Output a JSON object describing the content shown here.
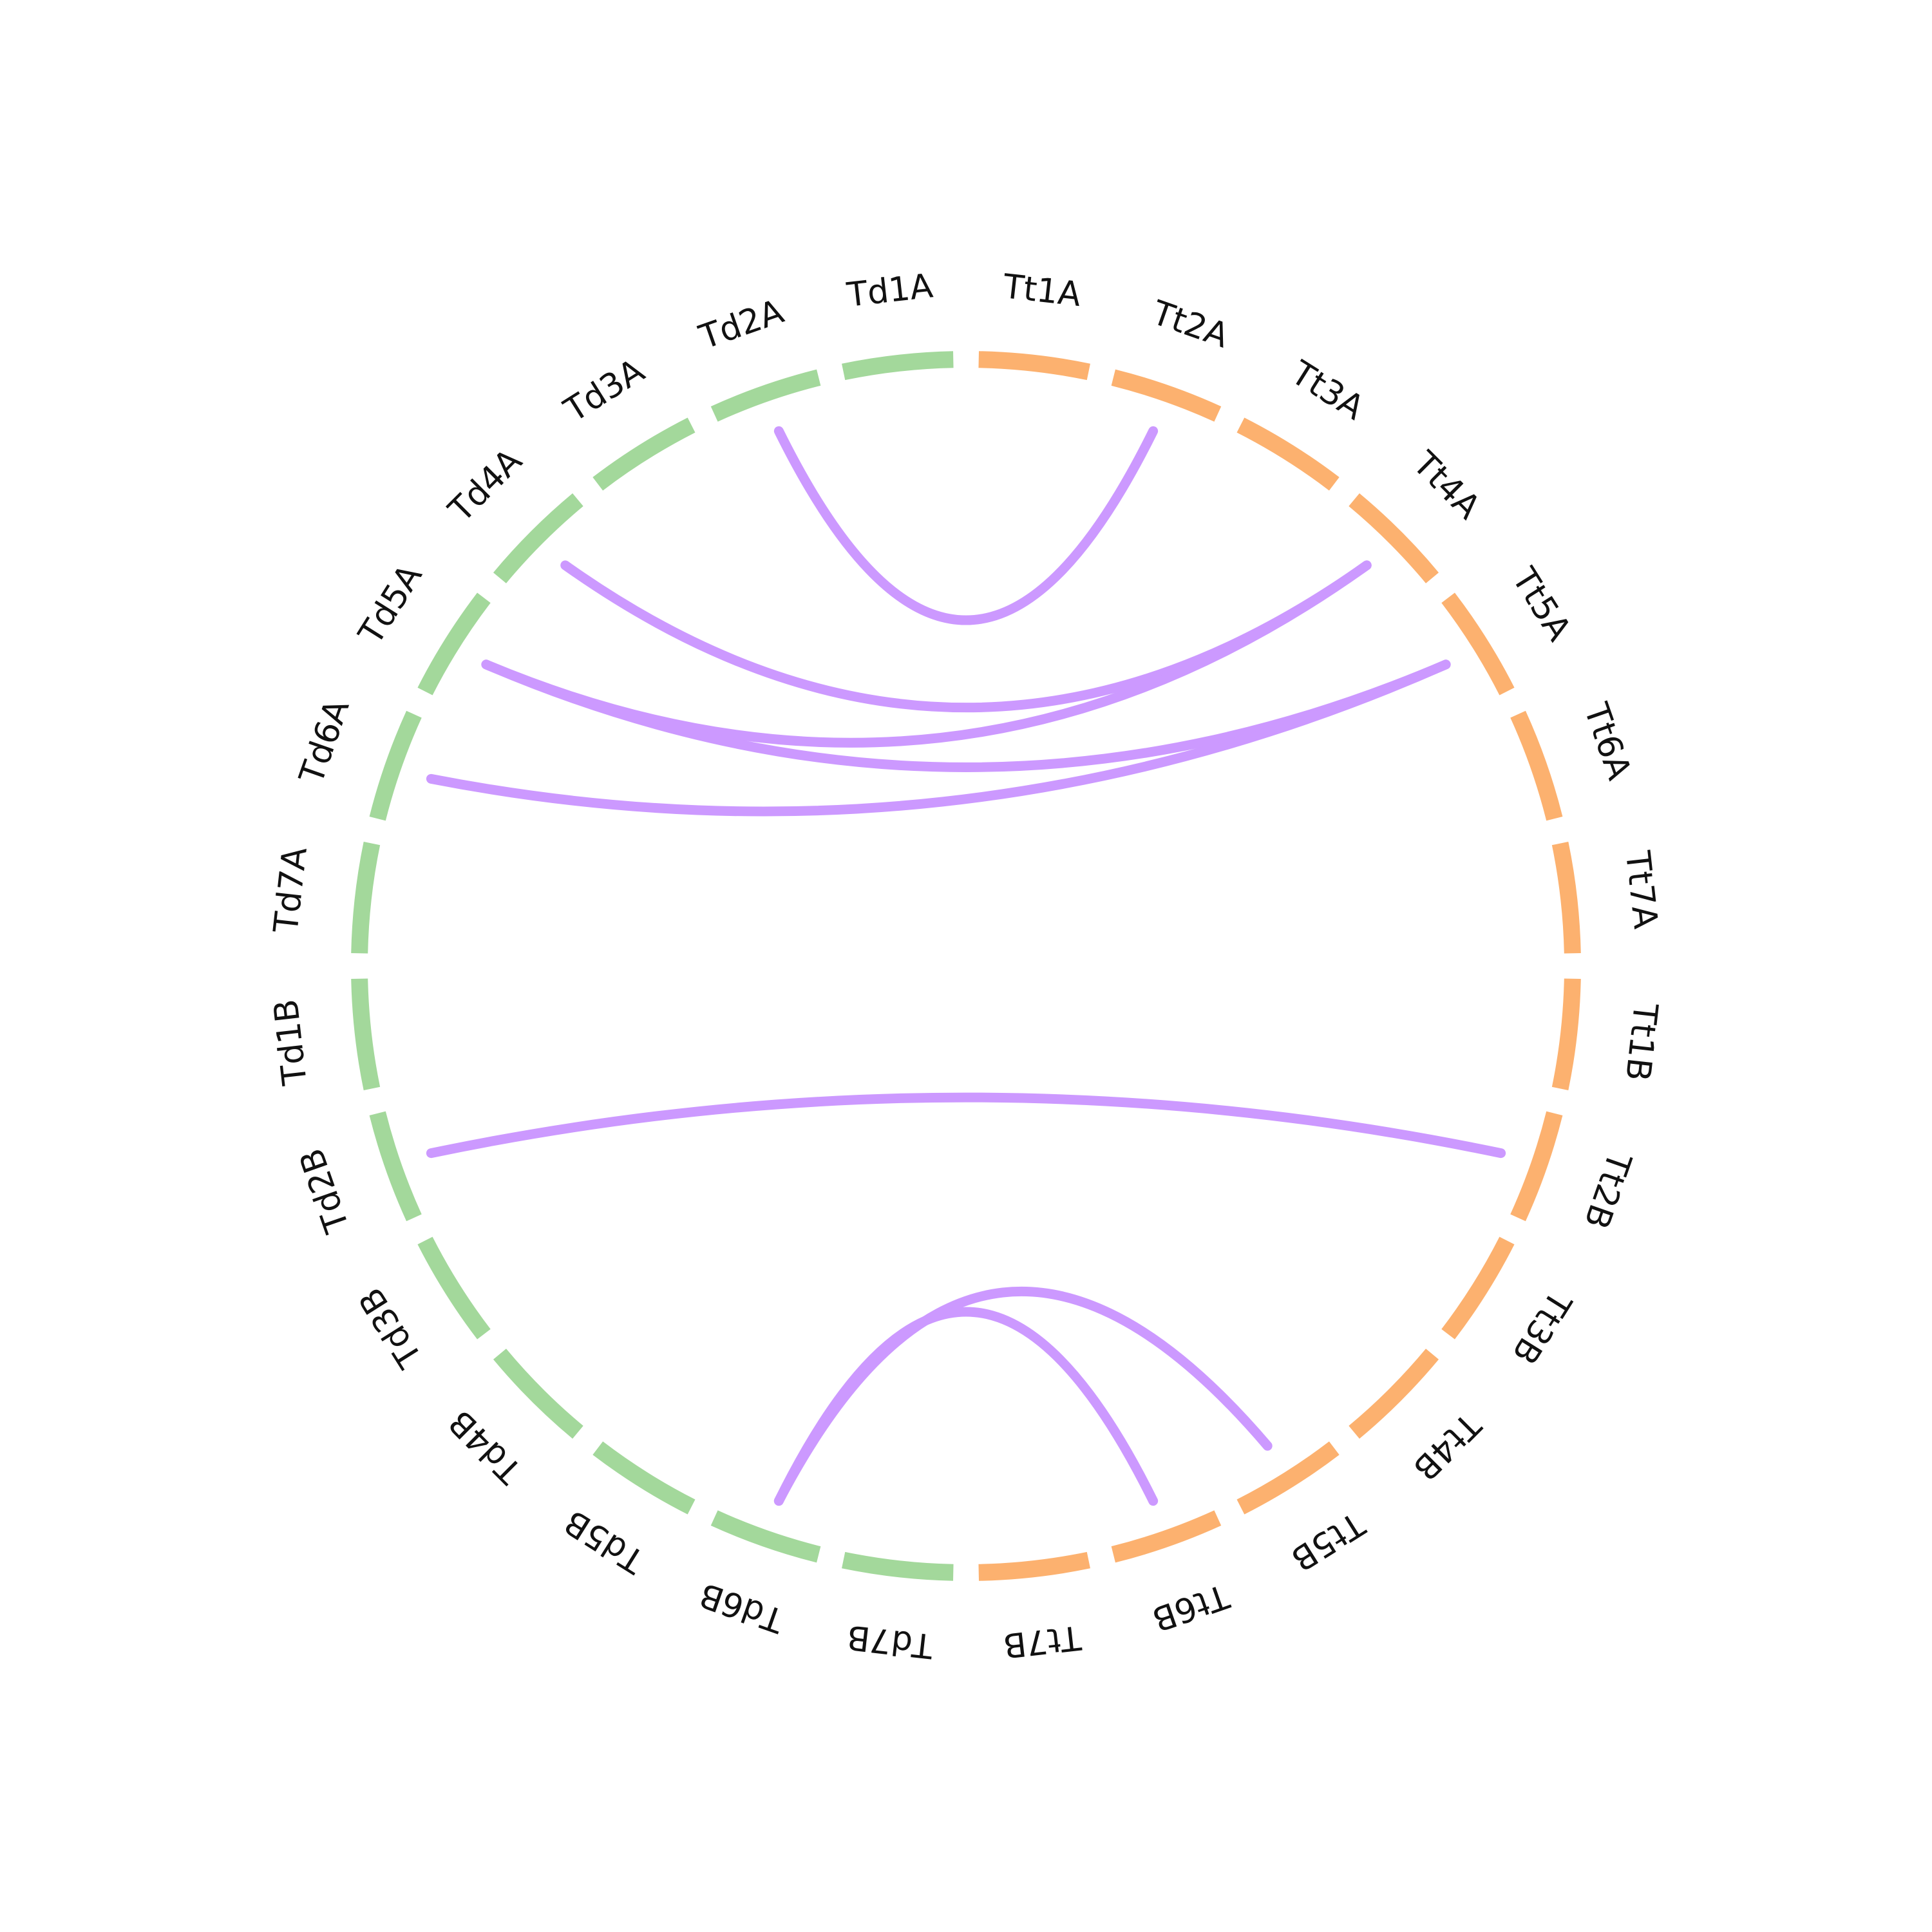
{
  "colors": {
    "Td": "#a3d89b",
    "Tt": "#fcb16f",
    "link": "#cc99ff",
    "label": "#111111",
    "background": "#ffffff"
  },
  "segments": [
    {
      "label": "Td1A",
      "group": "Td"
    },
    {
      "label": "Td2A",
      "group": "Td"
    },
    {
      "label": "Td3A",
      "group": "Td"
    },
    {
      "label": "Td4A",
      "group": "Td"
    },
    {
      "label": "Td5A",
      "group": "Td"
    },
    {
      "label": "Td6A",
      "group": "Td"
    },
    {
      "label": "Td7A",
      "group": "Td"
    },
    {
      "label": "Td1B",
      "group": "Td"
    },
    {
      "label": "Td2B",
      "group": "Td"
    },
    {
      "label": "Td3B",
      "group": "Td"
    },
    {
      "label": "Td4B",
      "group": "Td"
    },
    {
      "label": "Td5B",
      "group": "Td"
    },
    {
      "label": "Td6B",
      "group": "Td"
    },
    {
      "label": "Td7B",
      "group": "Td"
    },
    {
      "label": "Tt7B",
      "group": "Tt"
    },
    {
      "label": "Tt6B",
      "group": "Tt"
    },
    {
      "label": "Tt5B",
      "group": "Tt"
    },
    {
      "label": "Tt4B",
      "group": "Tt"
    },
    {
      "label": "Tt3B",
      "group": "Tt"
    },
    {
      "label": "Tt2B",
      "group": "Tt"
    },
    {
      "label": "Tt1B",
      "group": "Tt"
    },
    {
      "label": "Tt7A",
      "group": "Tt"
    },
    {
      "label": "Tt6A",
      "group": "Tt"
    },
    {
      "label": "Tt5A",
      "group": "Tt"
    },
    {
      "label": "Tt4A",
      "group": "Tt"
    },
    {
      "label": "Tt3A",
      "group": "Tt"
    },
    {
      "label": "Tt2A",
      "group": "Tt"
    },
    {
      "label": "Tt1A",
      "group": "Tt"
    }
  ],
  "links": [
    {
      "from": "Td2A",
      "to": "Tt2A"
    },
    {
      "from": "Td4A",
      "to": "Tt4A"
    },
    {
      "from": "Td5A",
      "to": "Tt4A"
    },
    {
      "from": "Td5A",
      "to": "Tt5A"
    },
    {
      "from": "Td6A",
      "to": "Tt5A"
    },
    {
      "from": "Td2B",
      "to": "Tt2B"
    },
    {
      "from": "Td6B",
      "to": "Tt5B"
    },
    {
      "from": "Td6B",
      "to": "Tt6B"
    }
  ]
}
